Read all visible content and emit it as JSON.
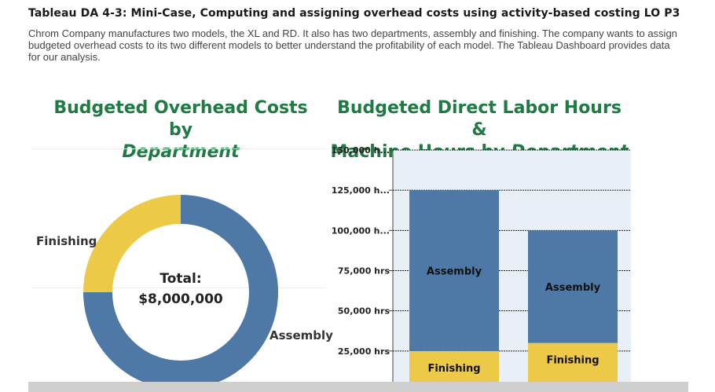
{
  "header": {
    "title": "Tableau DA 4-3: Mini-Case, Computing and assigning overhead costs using activity-based costing LO P3",
    "intro": "Chrom Company manufactures two models, the XL and RD. It also has two departments, assembly and finishing. The company wants to assign budgeted overhead costs to its two different models to better understand the profitability of each model. The Tableau Dashboard provides data for our analysis."
  },
  "donut": {
    "title_line1": "Budgeted Overhead Costs by",
    "title_line2": "Department",
    "center_label": "Total:",
    "center_value": "$8,000,000"
  },
  "bars": {
    "title_line1": "Budgeted Direct Labor Hours &",
    "title_line2_prefix": "Machine Hours by ",
    "title_line2_italic": "Department"
  },
  "colors": {
    "assembly": "#4e79a7",
    "finishing": "#edc948",
    "title_green": "#1f7a44",
    "plot_bg": "#e8eff6"
  },
  "chart_data": [
    {
      "type": "pie",
      "style": "donut",
      "categories": [
        "Assembly",
        "Finishing"
      ],
      "values": [
        0.75,
        0.25
      ],
      "value_units": "share of total",
      "total_label": "Total:",
      "total_value": "$8,000,000"
    },
    {
      "type": "bar",
      "stacked": true,
      "categories": [
        "",
        ""
      ],
      "series": [
        {
          "name": "Finishing",
          "values": [
            25000,
            30000
          ],
          "color": "#edc948"
        },
        {
          "name": "Assembly",
          "values": [
            100000,
            70000
          ],
          "color": "#4e79a7"
        }
      ],
      "ylim": [
        0,
        150000
      ],
      "yticks": [
        25000,
        50000,
        75000,
        100000,
        125000,
        150000
      ],
      "ytick_labels": [
        "25,000 hrs",
        "50,000 hrs",
        "75,000 hrs",
        "100,000 h...",
        "125,000 h...",
        "150,000 h..."
      ],
      "grid": true
    }
  ]
}
